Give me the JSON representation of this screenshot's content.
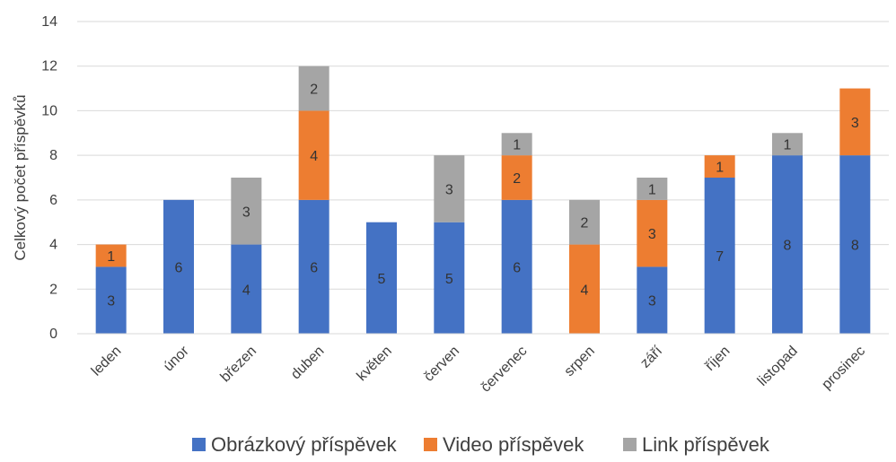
{
  "chart_data": {
    "type": "bar",
    "stacked": true,
    "title": "",
    "xlabel": "",
    "ylabel": "Celkový počet příspěvků",
    "ylim": [
      0,
      14
    ],
    "yticks": [
      0,
      2,
      4,
      6,
      8,
      10,
      12,
      14
    ],
    "grid": true,
    "legend_position": "bottom",
    "categories": [
      "leden",
      "únor",
      "březen",
      "duben",
      "květen",
      "červen",
      "červenec",
      "srpen",
      "září",
      "říjen",
      "listopad",
      "prosinec"
    ],
    "series": [
      {
        "name": "Obrázkový příspěvek",
        "color": "#4472C4",
        "values": [
          3,
          6,
          4,
          6,
          5,
          5,
          6,
          0,
          3,
          7,
          8,
          8
        ]
      },
      {
        "name": "Video příspěvek",
        "color": "#ED7D31",
        "values": [
          1,
          0,
          0,
          4,
          0,
          0,
          2,
          4,
          3,
          1,
          0,
          3
        ]
      },
      {
        "name": "Link příspěvek",
        "color": "#A5A5A5",
        "values": [
          0,
          0,
          3,
          2,
          0,
          3,
          1,
          2,
          1,
          0,
          1,
          0
        ]
      }
    ]
  }
}
